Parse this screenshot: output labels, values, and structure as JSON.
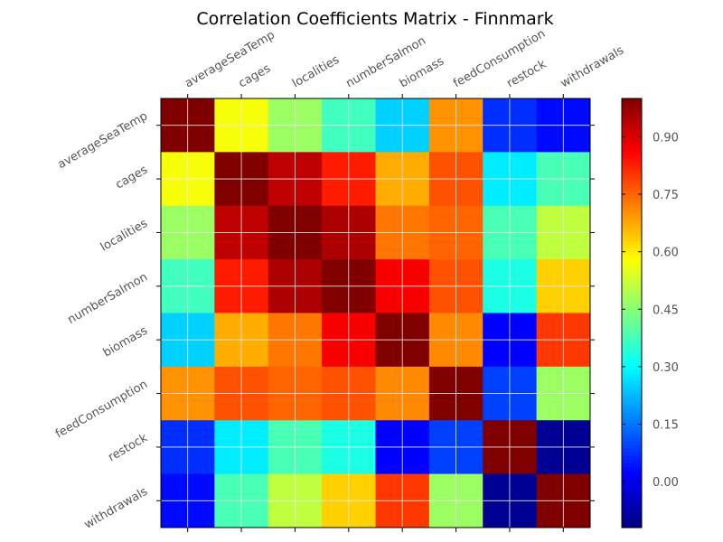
{
  "chart_data": {
    "type": "heatmap",
    "title": "Correlation Coefficients Matrix - Finnmark",
    "variables": [
      "averageSeaTemp",
      "cages",
      "localities",
      "numberSalmon",
      "biomass",
      "feedConsumption",
      "restock",
      "withdrawals"
    ],
    "values": [
      [
        1.0,
        0.57,
        0.47,
        0.37,
        0.25,
        0.7,
        0.07,
        0.03
      ],
      [
        0.57,
        1.0,
        0.93,
        0.83,
        0.67,
        0.77,
        0.28,
        0.38
      ],
      [
        0.47,
        0.93,
        1.0,
        0.95,
        0.73,
        0.75,
        0.38,
        0.51
      ],
      [
        0.37,
        0.83,
        0.95,
        1.0,
        0.87,
        0.77,
        0.33,
        0.63
      ],
      [
        0.25,
        0.67,
        0.73,
        0.87,
        1.0,
        0.71,
        0.02,
        0.8
      ],
      [
        0.7,
        0.77,
        0.75,
        0.77,
        0.71,
        1.0,
        0.09,
        0.47
      ],
      [
        0.07,
        0.28,
        0.38,
        0.33,
        0.02,
        0.09,
        1.0,
        -0.1
      ],
      [
        0.03,
        0.38,
        0.51,
        0.63,
        0.8,
        0.47,
        -0.1,
        1.0
      ]
    ],
    "colormap": "jet",
    "colorbar": {
      "vmin": -0.12,
      "vmax": 1.0,
      "ticks": [
        0.0,
        0.15,
        0.3,
        0.45,
        0.6,
        0.75,
        0.9
      ],
      "tick_labels": [
        "0.00",
        "0.15",
        "0.30",
        "0.45",
        "0.60",
        "0.75",
        "0.90"
      ]
    },
    "grid": true,
    "x_ticks_position": "top",
    "tick_label_rotation": 30
  }
}
